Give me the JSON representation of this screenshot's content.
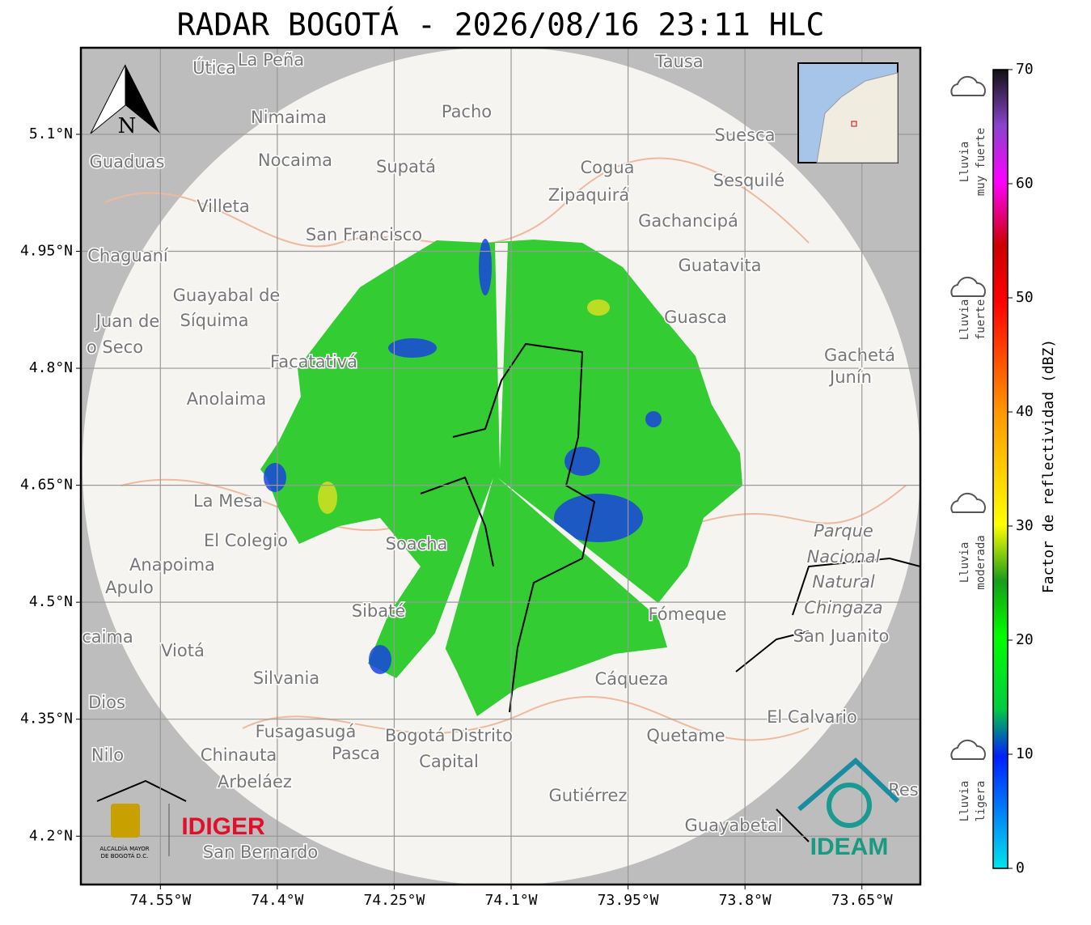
{
  "title": "RADAR BOGOTÁ - 2026/08/16 23:11 HLC",
  "map": {
    "xlim": [
      -74.652,
      -73.575
    ],
    "ylim": [
      4.138,
      5.211
    ],
    "lon_ticks": [
      {
        "value": -74.55,
        "label": "74.55°W"
      },
      {
        "value": -74.4,
        "label": "74.4°W"
      },
      {
        "value": -74.25,
        "label": "74.25°W"
      },
      {
        "value": -74.1,
        "label": "74.1°W"
      },
      {
        "value": -73.95,
        "label": "73.95°W"
      },
      {
        "value": -73.8,
        "label": "73.8°W"
      },
      {
        "value": -73.65,
        "label": "73.65°W"
      }
    ],
    "lat_ticks": [
      {
        "value": 5.1,
        "label": "5.1°N"
      },
      {
        "value": 4.95,
        "label": "4.95°N"
      },
      {
        "value": 4.8,
        "label": "4.8°N"
      },
      {
        "value": 4.65,
        "label": "4.65°N"
      },
      {
        "value": 4.5,
        "label": "4.5°N"
      },
      {
        "value": 4.35,
        "label": "4.35°N"
      },
      {
        "value": 4.2,
        "label": "4.2°N"
      }
    ],
    "north": "N",
    "places": [
      "Útica",
      "La Peña",
      "Tausa",
      "Pacho",
      "Nimaima",
      "Guaduas",
      "Nocaima",
      "Supatá",
      "Cogua",
      "Suesca",
      "Sesquilé",
      "Zipaquirá",
      "Villeta",
      "Gachancipá",
      "San Francisco",
      "Chaguaní",
      "Guatavita",
      "Guayabal de",
      "Síquima",
      "Guasca",
      "Juan de",
      "o Seco",
      "Facatativá",
      "Gachetá",
      "Junín",
      "Anolaima",
      "La Mesa",
      "Parque",
      "El Colegio",
      "Soacha",
      "Nacional",
      "Anapoima",
      "Natural",
      "Apulo",
      "Chingaza",
      "Sibaté",
      "Fómeque",
      "San Juanito",
      "caima",
      "Viotá",
      "Silvania",
      "Cáqueza",
      "Dios",
      "El Calvario",
      "Fusagasugá",
      "Bogotá Distrito",
      "Quetame",
      "Nilo",
      "Chinauta",
      "Pasca",
      "Capital",
      "Arbeláez",
      "Gutiérrez",
      "Guayabetal",
      "San Bernardo",
      "Res"
    ],
    "logos": {
      "idiger": "IDIGER",
      "ideam": "IDEAM",
      "alcaldia": [
        "ALCALDÍA MAYOR",
        "DE BOGOTÁ D.C."
      ]
    }
  },
  "colorbar": {
    "label": "Factor de reflectividad (dBZ)",
    "lim": [
      0,
      70
    ],
    "ticks": [
      0,
      10,
      20,
      30,
      40,
      50,
      60,
      70
    ],
    "legend": [
      [
        "Lluvia",
        "muy fuerte"
      ],
      [
        "Lluvia",
        "fuerte"
      ],
      [
        "Lluvia",
        "moderada"
      ],
      [
        "Lluvia",
        "ligera"
      ]
    ]
  }
}
